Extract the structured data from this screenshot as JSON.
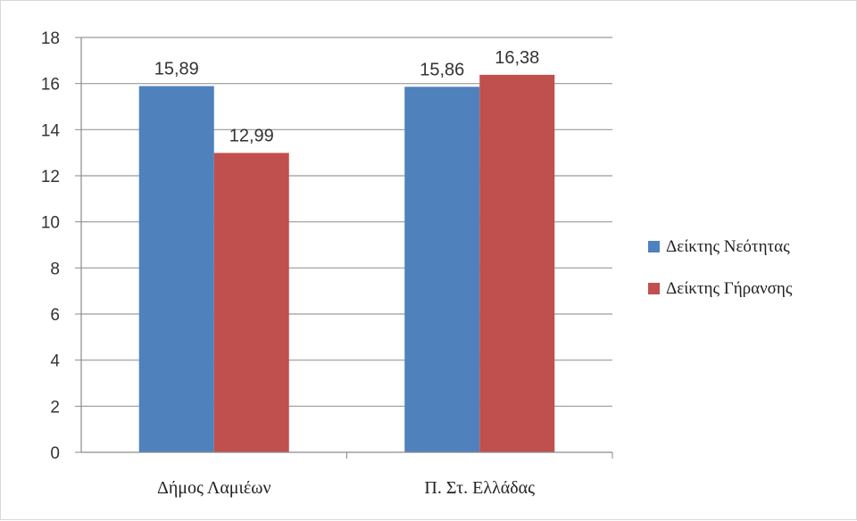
{
  "chart_data": {
    "type": "bar",
    "categories": [
      "Δήμος Λαμιέων",
      "Π. Στ. Ελλάδας"
    ],
    "series": [
      {
        "name": "Δείκτης Νεότητας",
        "values": [
          15.89,
          15.86
        ],
        "labels": [
          "15,89",
          "15,86"
        ],
        "color": "#4f81bd"
      },
      {
        "name": "Δείκτης Γήρανσης",
        "values": [
          12.99,
          16.38
        ],
        "labels": [
          "12,99",
          "16,38"
        ],
        "color": "#c0504d"
      }
    ],
    "y_ticks": [
      "0",
      "2",
      "4",
      "6",
      "8",
      "10",
      "12",
      "14",
      "16",
      "18"
    ],
    "ylim": [
      0,
      18
    ],
    "grid": true,
    "legend": "right",
    "gridline_color": "#9a9a9a"
  }
}
